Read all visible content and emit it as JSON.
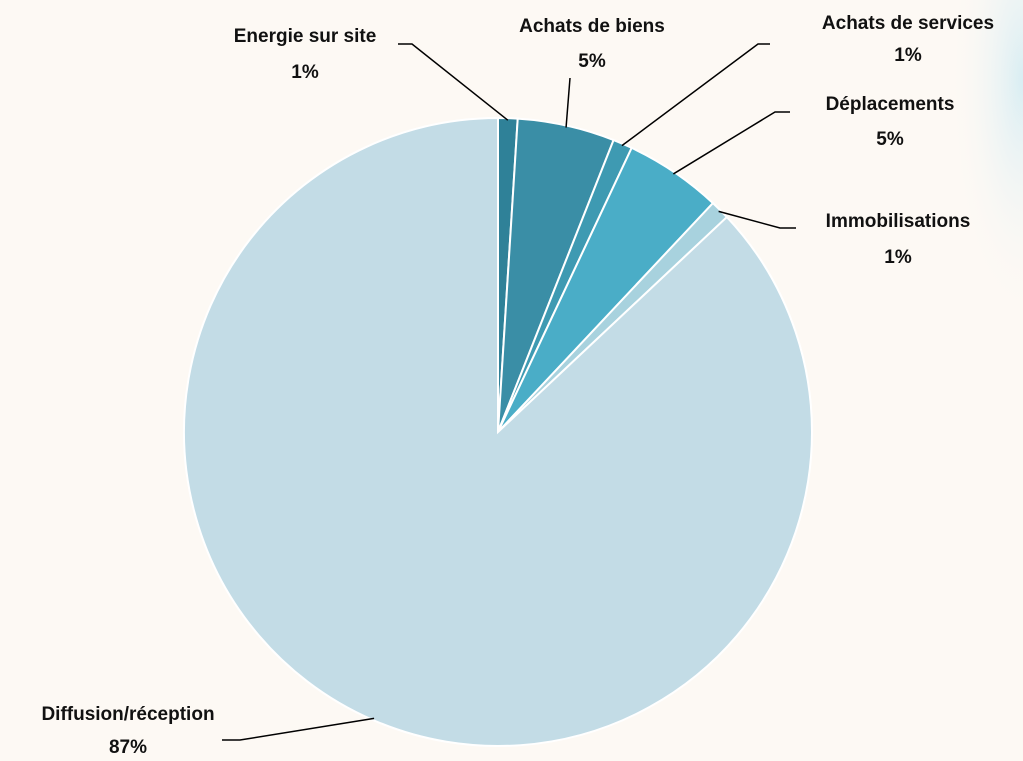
{
  "chart_data": {
    "type": "pie",
    "categories": [
      "Energie sur site",
      "Achats de biens",
      "Achats de services",
      "Déplacements",
      "Immobilisations",
      "Diffusion/réception"
    ],
    "values": [
      1,
      5,
      1,
      5,
      1,
      87
    ],
    "value_labels": [
      "1%",
      "5%",
      "1%",
      "5%",
      "1%",
      "87%"
    ],
    "colors": [
      "#2f8198",
      "#3a8ea6",
      "#3e9ab2",
      "#4aadc7",
      "#a8d2de",
      "#c3dce6"
    ]
  }
}
